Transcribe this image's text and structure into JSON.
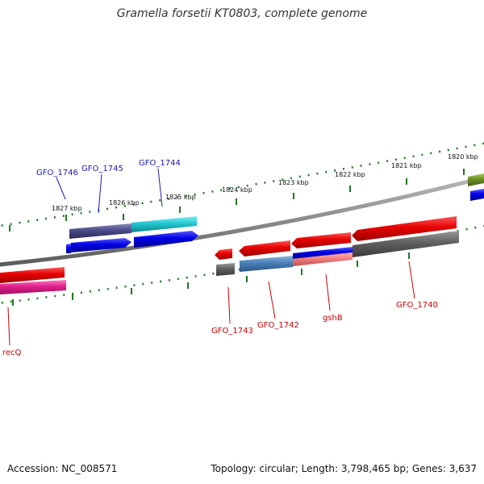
{
  "title": "Gramella forsetii KT0803, complete genome",
  "footer": {
    "accession": "Accession: NC_008571",
    "topology": "Topology: circular; Length: 3,798,465 bp; Genes: 3,637"
  },
  "ruler_labels": [
    "1827 kbp",
    "1826 kbp",
    "1825 kbp",
    "1824 kbp",
    "1823 kbp",
    "1822 kbp",
    "1821 kbp",
    "1820 kbp"
  ],
  "gene_labels_top": [
    "GFO_1746",
    "GFO_1745",
    "GFO_1744"
  ],
  "gene_labels_bottom": [
    "recQ",
    "GFO_1743",
    "GFO_1742",
    "gshB",
    "GFO_1740"
  ],
  "colors": {
    "backbone": "#8c8c8c",
    "ruler_ticks": "#1f7a1f",
    "forward_strand": "#0000e6",
    "reverse_strand": "#e60000",
    "label_blue": "#1a1ab5",
    "label_red": "#cc0000",
    "cyan_feature": "#22c8d0",
    "slate_feature": "#4a4a8a",
    "steel_feature": "#4a7fb8",
    "gray_feature": "#606060",
    "magenta_feature": "#e0208c",
    "olive_feature": "#6b8e23",
    "pink_feature": "#f08080"
  }
}
